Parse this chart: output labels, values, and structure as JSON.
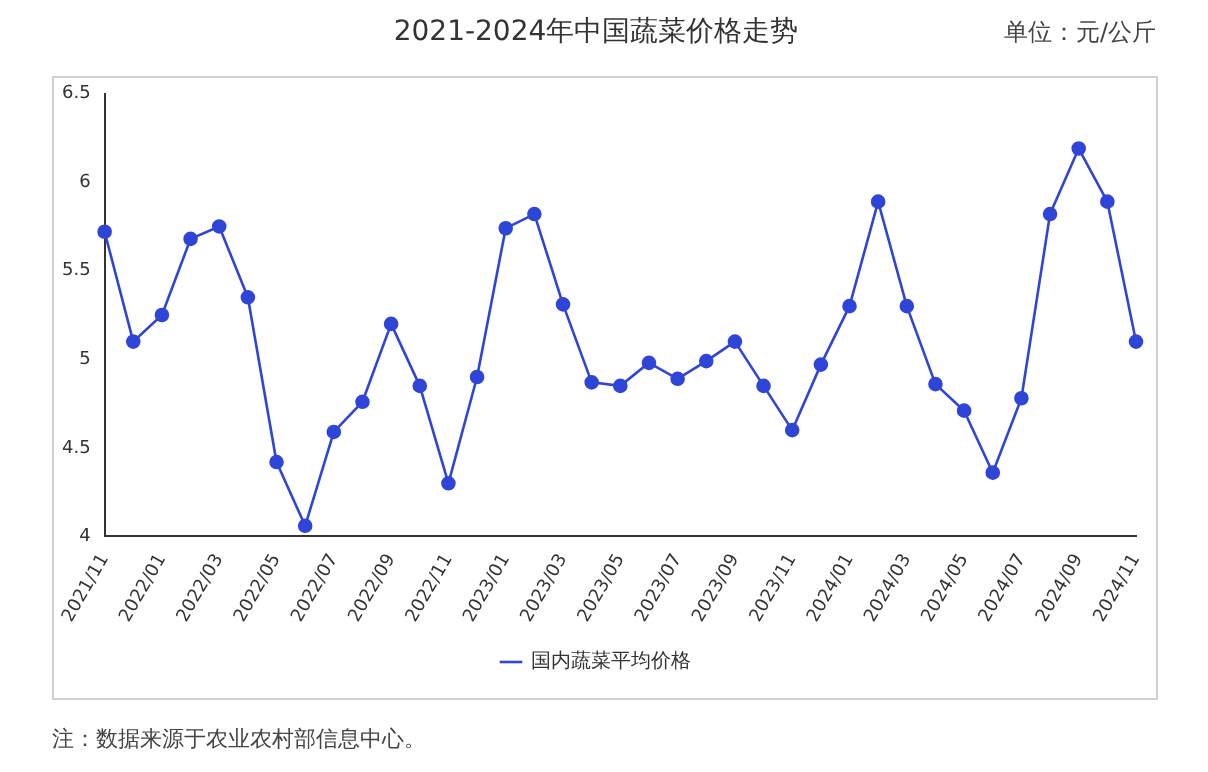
{
  "chart_data": {
    "type": "line",
    "title": "2021-2024年中国蔬菜价格走势",
    "annotations": [
      "单位：元/公斤",
      "注：数据来源于农业农村部信息中心。"
    ],
    "categories": [
      "2021/11",
      null,
      "2022/01",
      null,
      "2022/03",
      null,
      "2022/05",
      null,
      "2022/07",
      null,
      "2022/09",
      null,
      "2022/11",
      null,
      "2023/01",
      null,
      "2023/03",
      null,
      "2023/05",
      null,
      "2023/07",
      null,
      "2023/09",
      null,
      "2023/11",
      null,
      "2024/01",
      null,
      "2024/03",
      null,
      "2024/05",
      null,
      "2024/07",
      null,
      "2024/09",
      null,
      "2024/11"
    ],
    "series": [
      {
        "name": "国内蔬菜平均价格",
        "color": "#2f45d8",
        "values": [
          5.72,
          5.1,
          5.25,
          5.68,
          5.75,
          5.35,
          4.42,
          4.06,
          4.59,
          4.76,
          5.2,
          4.85,
          4.3,
          4.9,
          5.74,
          5.82,
          5.31,
          4.87,
          4.85,
          4.98,
          4.89,
          4.99,
          5.1,
          4.85,
          4.6,
          4.97,
          5.3,
          5.89,
          5.3,
          4.86,
          4.71,
          4.36,
          4.78,
          5.82,
          6.19,
          5.89,
          5.1
        ]
      }
    ],
    "ylim": [
      4,
      6.5
    ],
    "yticks": [
      4,
      4.5,
      5,
      5.5,
      6,
      6.5
    ],
    "grid": false,
    "legend": "bottom",
    "marker": "circle",
    "line_style": "solid"
  }
}
